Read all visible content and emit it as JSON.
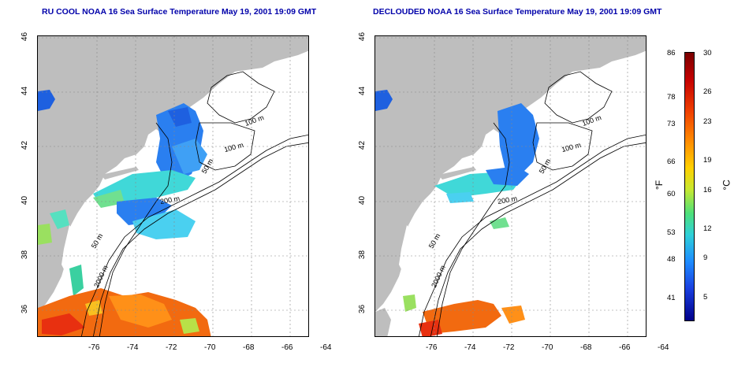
{
  "left_title": "RU COOL NOAA 16 Sea Surface Temperature May 19, 2001 19:09 GMT",
  "right_title": "DECLOUDED NOAA 16 Sea Surface Temperature May 19, 2001 19:09 GMT",
  "x_ticks": [
    "-76",
    "-74",
    "-72",
    "-70",
    "-68",
    "-66",
    "-64"
  ],
  "y_ticks": [
    "46",
    "44",
    "42",
    "40",
    "38",
    "36"
  ],
  "contour_labels": {
    "l100a": "100 m",
    "l100b": "100 m",
    "l50a": "50 m",
    "l200": "200 m",
    "l50b": "50 m",
    "l2000": "2000 m"
  },
  "colorbar": {
    "fahrenheit_unit": "°F",
    "celsius_unit": "°C",
    "fahrenheit_ticks": [
      "86",
      "78",
      "73",
      "66",
      "60",
      "53",
      "48",
      "41"
    ],
    "celsius_ticks": [
      "30",
      "26",
      "23",
      "19",
      "16",
      "12",
      "9",
      "5"
    ]
  },
  "colors": {
    "land": "#bebebe",
    "title": "#0000aa",
    "water_nodata": "#ffffff",
    "contour": "#000000"
  }
}
